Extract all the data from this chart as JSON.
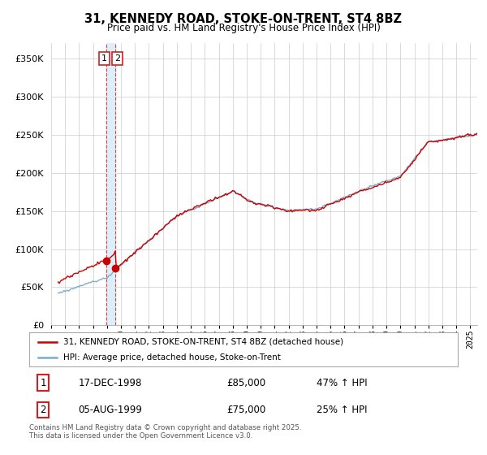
{
  "title": "31, KENNEDY ROAD, STOKE-ON-TRENT, ST4 8BZ",
  "subtitle": "Price paid vs. HM Land Registry's House Price Index (HPI)",
  "legend_line1": "31, KENNEDY ROAD, STOKE-ON-TRENT, ST4 8BZ (detached house)",
  "legend_line2": "HPI: Average price, detached house, Stoke-on-Trent",
  "transaction1_label": "1",
  "transaction1_date": "17-DEC-1998",
  "transaction1_price": "£85,000",
  "transaction1_hpi": "47% ↑ HPI",
  "transaction2_label": "2",
  "transaction2_date": "05-AUG-1999",
  "transaction2_price": "£75,000",
  "transaction2_hpi": "25% ↑ HPI",
  "footer": "Contains HM Land Registry data © Crown copyright and database right 2025.\nThis data is licensed under the Open Government Licence v3.0.",
  "price_line_color": "#cc0000",
  "hpi_line_color": "#7aadcf",
  "vline_color": "#dd4444",
  "vband_color": "#ddeef8",
  "ylim": [
    0,
    370000
  ],
  "yticks": [
    0,
    50000,
    100000,
    150000,
    200000,
    250000,
    300000,
    350000
  ],
  "transaction1_x": 1998.96,
  "transaction2_x": 1999.59,
  "transaction1_y": 85000,
  "transaction2_y": 75000,
  "xmin": 1995.5,
  "xmax": 2025.5
}
